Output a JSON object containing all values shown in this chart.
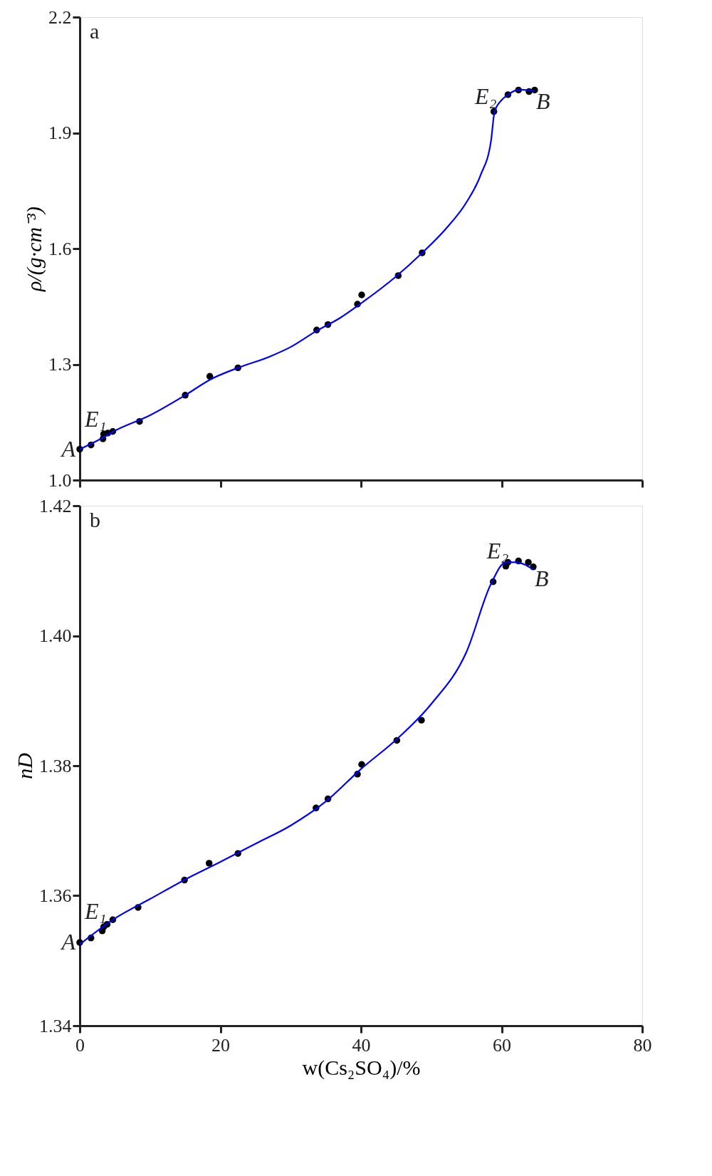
{
  "chart_data": [
    {
      "type": "scatter",
      "ylabel": "ρ/(g·cm⁻³)",
      "xlim": [
        0,
        80
      ],
      "xticks": [
        0,
        20,
        40,
        60,
        80
      ],
      "ylim": [
        1.0,
        2.2
      ],
      "yticks": [
        {
          "value": 1.0,
          "label": "1.0"
        },
        1.3,
        1.6,
        1.9,
        2.2
      ],
      "tick_labels": "y",
      "grid": false,
      "marker": "circle",
      "annotations": [
        "a",
        {
          "text": "A",
          "x": 0,
          "y": 1.08
        },
        {
          "text": "E₁",
          "x": 3.4,
          "y": 1.119
        },
        {
          "text": "E₂",
          "x": 58.9,
          "y": 1.955
        },
        {
          "text": "B",
          "x": 64.7,
          "y": 2.011
        }
      ],
      "series": [
        {
          "color": "#000000",
          "x": [
            0,
            1.6,
            3.3,
            3.4,
            4.0,
            4.7,
            8.5,
            15.0,
            18.5,
            22.5,
            33.7,
            35.3,
            39.5,
            40.1,
            45.3,
            48.7,
            58.9,
            60.9,
            62.4,
            63.9,
            64.7
          ],
          "values": [
            1.08,
            1.091,
            1.107,
            1.119,
            1.122,
            1.126,
            1.152,
            1.22,
            1.269,
            1.291,
            1.389,
            1.403,
            1.456,
            1.48,
            1.53,
            1.589,
            1.955,
            1.999,
            2.011,
            2.007,
            2.011
          ]
        },
        {
          "type": "line",
          "color": "#0000ff",
          "line_style": "solid",
          "marker": "none",
          "x": [
            0,
            3,
            5,
            10,
            15,
            18.5,
            22.5,
            27,
            30,
            33.7,
            37,
            40,
            45,
            48.7,
            52,
            55,
            57,
            58.5,
            59,
            60,
            61,
            62.4,
            64,
            64.7
          ],
          "values": [
            1.08,
            1.107,
            1.128,
            1.168,
            1.22,
            1.26,
            1.291,
            1.32,
            1.345,
            1.387,
            1.42,
            1.458,
            1.528,
            1.589,
            1.65,
            1.72,
            1.79,
            1.88,
            1.955,
            1.985,
            2.0,
            2.012,
            2.01,
            2.008
          ]
        }
      ]
    },
    {
      "type": "scatter",
      "xlabel": "w(Cs₂SO₄)/%",
      "ylabel": "nD",
      "xlim": [
        0,
        80
      ],
      "xticks": [
        0,
        20,
        40,
        60,
        80
      ],
      "ylim": [
        1.34,
        1.42
      ],
      "yticks": [
        1.34,
        1.36,
        1.38,
        {
          "value": 1.4,
          "label": "1.40"
        },
        1.42
      ],
      "grid": false,
      "marker": "circle",
      "annotations": [
        "b",
        {
          "text": "A",
          "x": 0,
          "y": 1.3528
        },
        {
          "text": "E₁",
          "x": 3.4,
          "y": 1.3552
        },
        {
          "text": "E₂",
          "x": 60.6,
          "y": 1.4107
        },
        {
          "text": "B",
          "x": 64.5,
          "y": 1.4106
        }
      ],
      "series": [
        {
          "color": "#000000",
          "x": [
            0,
            1.6,
            3.2,
            3.4,
            3.9,
            4.7,
            8.3,
            14.9,
            18.4,
            22.5,
            33.6,
            35.3,
            39.5,
            40.1,
            45.1,
            48.6,
            58.8,
            60.6,
            60.9,
            62.4,
            63.8,
            64.5
          ],
          "values": [
            1.3528,
            1.3535,
            1.3546,
            1.3552,
            1.3556,
            1.3563,
            1.3582,
            1.3624,
            1.365,
            1.3665,
            1.3735,
            1.3749,
            1.3787,
            1.3802,
            1.3839,
            1.387,
            1.4083,
            1.4107,
            1.4113,
            1.4115,
            1.4113,
            1.4106
          ]
        },
        {
          "type": "line",
          "color": "#0000ff",
          "line_style": "solid",
          "marker": "none",
          "x": [
            0,
            5,
            10,
            15,
            20,
            25,
            30,
            35,
            40,
            45,
            50,
            55,
            58.5,
            60.6,
            62,
            64.5
          ],
          "values": [
            1.3525,
            1.3565,
            1.3595,
            1.3625,
            1.3652,
            1.368,
            1.3708,
            1.3745,
            1.3795,
            1.384,
            1.3895,
            1.3975,
            1.408,
            1.4113,
            1.4113,
            1.4102
          ]
        }
      ]
    }
  ]
}
